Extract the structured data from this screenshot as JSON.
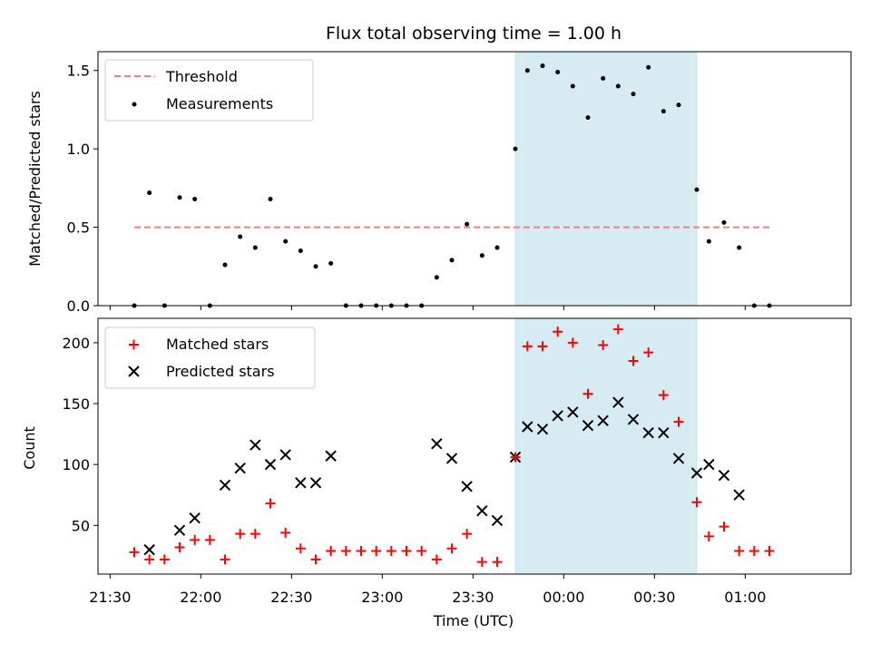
{
  "chart_data": [
    {
      "type": "scatter",
      "title": "Flux total observing time = 1.00 h",
      "xlabel": "",
      "ylabel": "Matched/Predicted stars",
      "xlim": [
        "21:26",
        "01:35"
      ],
      "ylim": [
        0,
        1.62
      ],
      "yticks": [
        0.0,
        0.5,
        1.0,
        1.5
      ],
      "ytick_labels": [
        "0.0",
        "0.5",
        "1.0",
        "1.5"
      ],
      "highlight_span": {
        "x": [
          "23:44",
          "00:44"
        ],
        "color": "#add8e6"
      },
      "grid": false,
      "legend_position": "top-left",
      "threshold": {
        "name": "Threshold",
        "value": 0.5,
        "x": [
          "21:38",
          "01:08"
        ],
        "color": "#f08080"
      },
      "series": [
        {
          "name": "Measurements",
          "color": "#000000",
          "x": [
            "21:38",
            "21:43",
            "21:48",
            "21:53",
            "21:58",
            "22:03",
            "22:08",
            "22:13",
            "22:18",
            "22:23",
            "22:28",
            "22:33",
            "22:38",
            "22:43",
            "22:48",
            "22:53",
            "22:58",
            "23:03",
            "23:08",
            "23:13",
            "23:18",
            "23:23",
            "23:28",
            "23:33",
            "23:38",
            "23:44",
            "23:48",
            "23:53",
            "23:58",
            "00:03",
            "00:08",
            "00:13",
            "00:18",
            "00:23",
            "00:28",
            "00:33",
            "00:38",
            "00:44",
            "00:48",
            "00:53",
            "00:58",
            "01:03",
            "01:08"
          ],
          "y": [
            0.0,
            0.72,
            0.0,
            0.69,
            0.68,
            0.0,
            0.26,
            0.44,
            0.37,
            0.68,
            0.41,
            0.35,
            0.25,
            0.27,
            0.0,
            0.0,
            0.0,
            0.0,
            0.0,
            0.0,
            0.18,
            0.29,
            0.52,
            0.32,
            0.37,
            1.0,
            1.5,
            1.53,
            1.49,
            1.4,
            1.2,
            1.45,
            1.4,
            1.35,
            1.52,
            1.24,
            1.28,
            0.74,
            0.41,
            0.53,
            0.37,
            0.0,
            0.0
          ]
        }
      ]
    },
    {
      "type": "scatter",
      "title": "",
      "xlabel": "Time (UTC)",
      "ylabel": "Count",
      "xlim": [
        "21:26",
        "01:35"
      ],
      "ylim": [
        10,
        220
      ],
      "yticks": [
        50,
        100,
        150,
        200
      ],
      "ytick_labels": [
        "50",
        "100",
        "150",
        "200"
      ],
      "xtick_labels": [
        "21:30",
        "22:00",
        "22:30",
        "23:00",
        "23:30",
        "00:00",
        "00:30",
        "01:00"
      ],
      "highlight_span": {
        "x": [
          "23:44",
          "00:44"
        ],
        "color": "#add8e6"
      },
      "grid": false,
      "legend_position": "top-left",
      "series": [
        {
          "name": "Matched stars",
          "marker": "plus",
          "color": "#ff0000",
          "x": [
            "21:38",
            "21:43",
            "21:48",
            "21:53",
            "21:58",
            "22:03",
            "22:08",
            "22:13",
            "22:18",
            "22:23",
            "22:28",
            "22:33",
            "22:38",
            "22:43",
            "22:48",
            "22:53",
            "22:58",
            "23:03",
            "23:08",
            "23:13",
            "23:18",
            "23:23",
            "23:28",
            "23:33",
            "23:38",
            "23:44",
            "23:48",
            "23:53",
            "23:58",
            "00:03",
            "00:08",
            "00:13",
            "00:18",
            "00:23",
            "00:28",
            "00:33",
            "00:38",
            "00:44",
            "00:48",
            "00:53",
            "00:58",
            "01:03",
            "01:08"
          ],
          "y": [
            28,
            22,
            22,
            32,
            38,
            38,
            22,
            43,
            43,
            68,
            44,
            31,
            22,
            29,
            29,
            29,
            29,
            29,
            29,
            29,
            22,
            31,
            43,
            20,
            20,
            106,
            197,
            197,
            209,
            200,
            158,
            198,
            211,
            185,
            192,
            157,
            135,
            69,
            41,
            49,
            29,
            29,
            29
          ]
        },
        {
          "name": "Predicted stars",
          "marker": "x",
          "color": "#000000",
          "x": [
            "21:43",
            "21:53",
            "21:58",
            "22:08",
            "22:13",
            "22:18",
            "22:23",
            "22:28",
            "22:33",
            "22:38",
            "22:43",
            "23:18",
            "23:23",
            "23:28",
            "23:33",
            "23:38",
            "23:44",
            "23:48",
            "23:53",
            "23:58",
            "00:03",
            "00:08",
            "00:13",
            "00:18",
            "00:23",
            "00:28",
            "00:33",
            "00:38",
            "00:44",
            "00:48",
            "00:53",
            "00:58"
          ],
          "y": [
            30,
            46,
            56,
            83,
            97,
            116,
            100,
            108,
            85,
            85,
            107,
            117,
            105,
            82,
            62,
            54,
            106,
            131,
            129,
            140,
            143,
            132,
            136,
            151,
            137,
            126,
            126,
            105,
            93,
            100,
            91,
            75
          ]
        }
      ]
    }
  ]
}
